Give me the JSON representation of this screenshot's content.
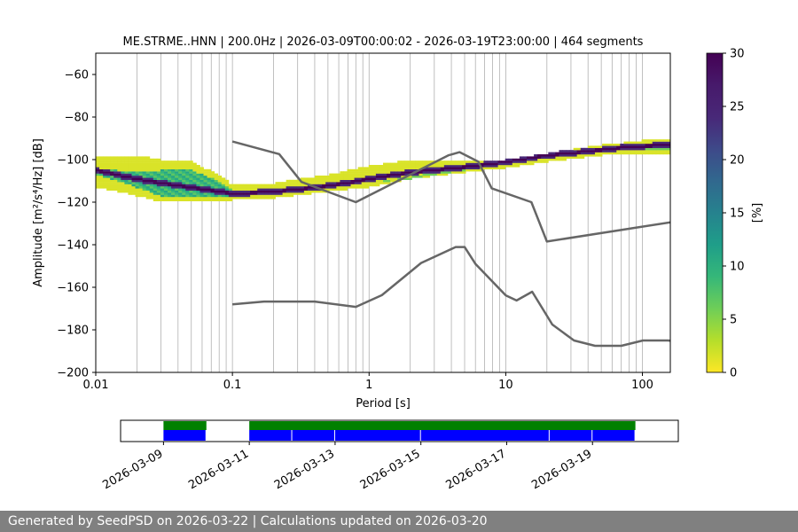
{
  "chart_data": {
    "type": "heatmap",
    "title": "ME.STRME..HNN | 200.0Hz | 2026-03-09T00:00:02 - 2026-03-19T23:00:00 | 464 segments",
    "xlabel": "Period [s]",
    "ylabel": "Amplitude [m²/s⁴/Hz] [dB]",
    "x_scale": "log",
    "xlim": [
      0.01,
      160
    ],
    "ylim": [
      -200,
      -50
    ],
    "x_ticks": [
      0.01,
      0.1,
      1,
      10,
      100
    ],
    "x_tick_labels": [
      "0.01",
      "0.1",
      "1",
      "10",
      "100"
    ],
    "y_ticks": [
      -200,
      -180,
      -160,
      -140,
      -120,
      -100,
      -80,
      -60
    ],
    "y_tick_labels": [
      "−200",
      "−180",
      "−160",
      "−140",
      "−120",
      "−100",
      "−80",
      "−60"
    ],
    "grid": "x-major-and-minor",
    "colorbar": {
      "label": "[%]",
      "range": [
        0,
        30
      ],
      "ticks": [
        0,
        5,
        10,
        15,
        20,
        25,
        30
      ],
      "tick_labels": [
        "0",
        "5",
        "10",
        "15",
        "20",
        "25",
        "30"
      ],
      "colormap": "viridis_r"
    },
    "psd_mode_curve": {
      "x": [
        0.01,
        0.02,
        0.03,
        0.05,
        0.08,
        0.1,
        0.2,
        0.4,
        0.7,
        1,
        2,
        4,
        6,
        10,
        20,
        40,
        80,
        160
      ],
      "y": [
        -105,
        -109,
        -111,
        -113,
        -115,
        -116,
        -115,
        -113,
        -111,
        -109,
        -106,
        -104,
        -103,
        -101,
        -98,
        -96,
        -94,
        -93
      ]
    },
    "psd_spread": {
      "x": [
        0.01,
        0.02,
        0.03,
        0.05,
        0.08,
        0.1,
        0.2,
        0.5,
        1,
        2,
        5,
        10,
        20,
        50,
        100,
        160
      ],
      "upper": [
        -99,
        -99,
        -101,
        -102,
        -108,
        -113,
        -112,
        -108,
        -104,
        -101,
        -101,
        -101,
        -98,
        -94,
        -92,
        -91
      ],
      "lower": [
        -112,
        -116,
        -119,
        -119,
        -119,
        -118,
        -117,
        -114,
        -112,
        -108,
        -105,
        -103,
        -100,
        -97,
        -97,
        -97
      ],
      "dense_upper": [
        -104,
        -106,
        -105,
        -105,
        -110,
        -114,
        -115,
        -113,
        -111,
        -108,
        -104,
        -102,
        -99,
        -96,
        -94,
        -93
      ],
      "dense_lower": [
        -107,
        -113,
        -117,
        -117,
        -118,
        -117,
        -116,
        -113,
        -111,
        -109,
        -105,
        -102,
        -99,
        -96,
        -95,
        -95
      ]
    },
    "nhnm": {
      "x": [
        0.1,
        0.22,
        0.32,
        0.8,
        3.8,
        4.6,
        6.3,
        7.9,
        15.4,
        20,
        354.8
      ],
      "y": [
        -91.5,
        -97.4,
        -110.5,
        -120,
        -98,
        -96.5,
        -101,
        -113.5,
        -120,
        -138.5,
        -126
      ]
    },
    "nlnm": {
      "x": [
        0.1,
        0.17,
        0.4,
        0.8,
        1.24,
        2.4,
        4.3,
        5,
        6,
        10,
        12,
        15.6,
        21.9,
        31.6,
        45,
        70,
        101,
        154,
        328
      ],
      "y": [
        -168,
        -166.7,
        -166.7,
        -169.2,
        -163.7,
        -148.6,
        -141.1,
        -141.1,
        -149,
        -163.8,
        -166.2,
        -162.1,
        -177.5,
        -185,
        -187.5,
        -187.5,
        -185,
        -185,
        -187.5
      ]
    },
    "timeline": {
      "start": "2026-03-08",
      "end": "2026-03-21",
      "tick_labels": [
        "2026-03-09",
        "2026-03-11",
        "2026-03-13",
        "2026-03-15",
        "2026-03-17",
        "2026-03-19"
      ],
      "tick_dates": [
        "2026-03-09",
        "2026-03-11",
        "2026-03-13",
        "2026-03-15",
        "2026-03-17",
        "2026-03-19"
      ],
      "used_ranges": [
        [
          "2026-03-09T00:00",
          "2026-03-10T00:00"
        ],
        [
          "2026-03-11T00:00",
          "2026-03-20T00:00"
        ]
      ],
      "data_ranges": [
        [
          "2026-03-09T00:00",
          "2026-03-10T00:00"
        ],
        [
          "2026-03-11T00:00",
          "2026-03-12T00:00"
        ],
        [
          "2026-03-12T00:00",
          "2026-03-13T00:00"
        ],
        [
          "2026-03-13T00:00",
          "2026-03-15T00:00"
        ],
        [
          "2026-03-15T00:00",
          "2026-03-18T00:00"
        ],
        [
          "2026-03-18T00:00",
          "2026-03-19T00:00"
        ],
        [
          "2026-03-19T00:00",
          "2026-03-20T00:00"
        ]
      ],
      "used_color": "#008000",
      "data_color": "#0000ff"
    }
  },
  "footer": {
    "text": "Generated by SeedPSD on 2026-03-22 | Calculations updated on 2026-03-20"
  },
  "colors": {
    "model_line": "#666666",
    "grid": "#b0b0b0",
    "footer_bg": "#808080"
  }
}
